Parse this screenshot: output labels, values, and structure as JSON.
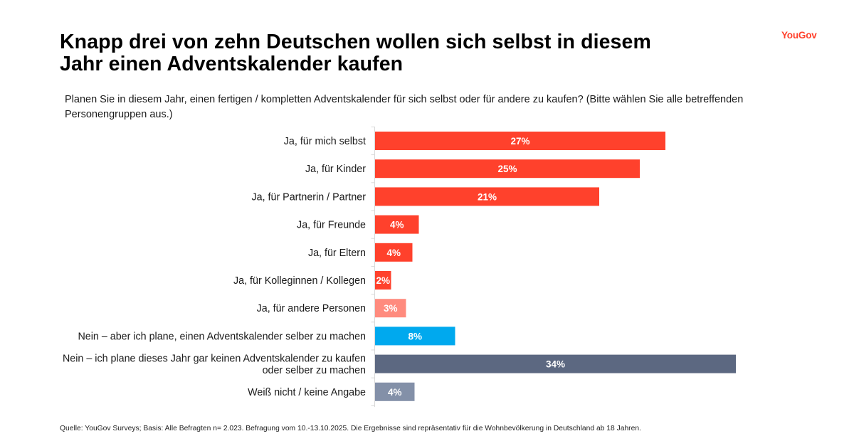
{
  "brand": {
    "logo_text": "YouGov",
    "accent_color": "#ff412c"
  },
  "header": {
    "title_line1": "Knapp drei von zehn Deutschen wollen sich selbst in diesem",
    "title_line2": "Jahr einen Adventskalender kaufen"
  },
  "question": "Planen Sie in diesem Jahr, einen fertigen / kompletten Adventskalender für sich selbst oder für andere zu kaufen? (Bitte wählen Sie alle betreffenden Personengruppen aus.)",
  "footer": "Quelle: YouGov Surveys; Basis: Alle Befragten n= 2.023. Befragung vom 10.-13.10.2025. Die Ergebnisse sind repräsentativ für die Wohnbevölkerung in Deutschland ab 18 Jahren.",
  "chart_data": {
    "type": "bar",
    "orientation": "horizontal",
    "title": "Knapp drei von zehn Deutschen wollen sich selbst in diesem Jahr einen Adventskalender kaufen",
    "xlabel": "",
    "ylabel": "",
    "xlim": [
      0,
      36
    ],
    "grid": false,
    "legend": "none",
    "categories": [
      [
        "Ja, für mich selbst"
      ],
      [
        "Ja, für Kinder"
      ],
      [
        "Ja, für Partnerin / Partner"
      ],
      [
        "Ja, für Freunde"
      ],
      [
        "Ja, für Eltern"
      ],
      [
        "Ja, für Kolleginnen / Kollegen"
      ],
      [
        "Ja, für andere Personen"
      ],
      [
        "Nein – aber ich plane, einen Adventskalender selber zu machen"
      ],
      [
        "Nein – ich plane dieses Jahr gar keinen Adventskalender zu kaufen",
        "oder selber zu machen"
      ],
      [
        "Weiß nicht / keine Angabe"
      ]
    ],
    "values": [
      27.2,
      24.8,
      21.0,
      4.1,
      3.5,
      1.5,
      2.9,
      7.5,
      33.8,
      3.7
    ],
    "labels": [
      "27%",
      "25%",
      "21%",
      "4%",
      "4%",
      "2%",
      "3%",
      "8%",
      "34%",
      "4%"
    ],
    "colors": [
      "#ff412c",
      "#ff412c",
      "#ff412c",
      "#ff412c",
      "#ff412c",
      "#ff412c",
      "#ff8b7e",
      "#00a9ee",
      "#5c6881",
      "#8390a8"
    ]
  }
}
